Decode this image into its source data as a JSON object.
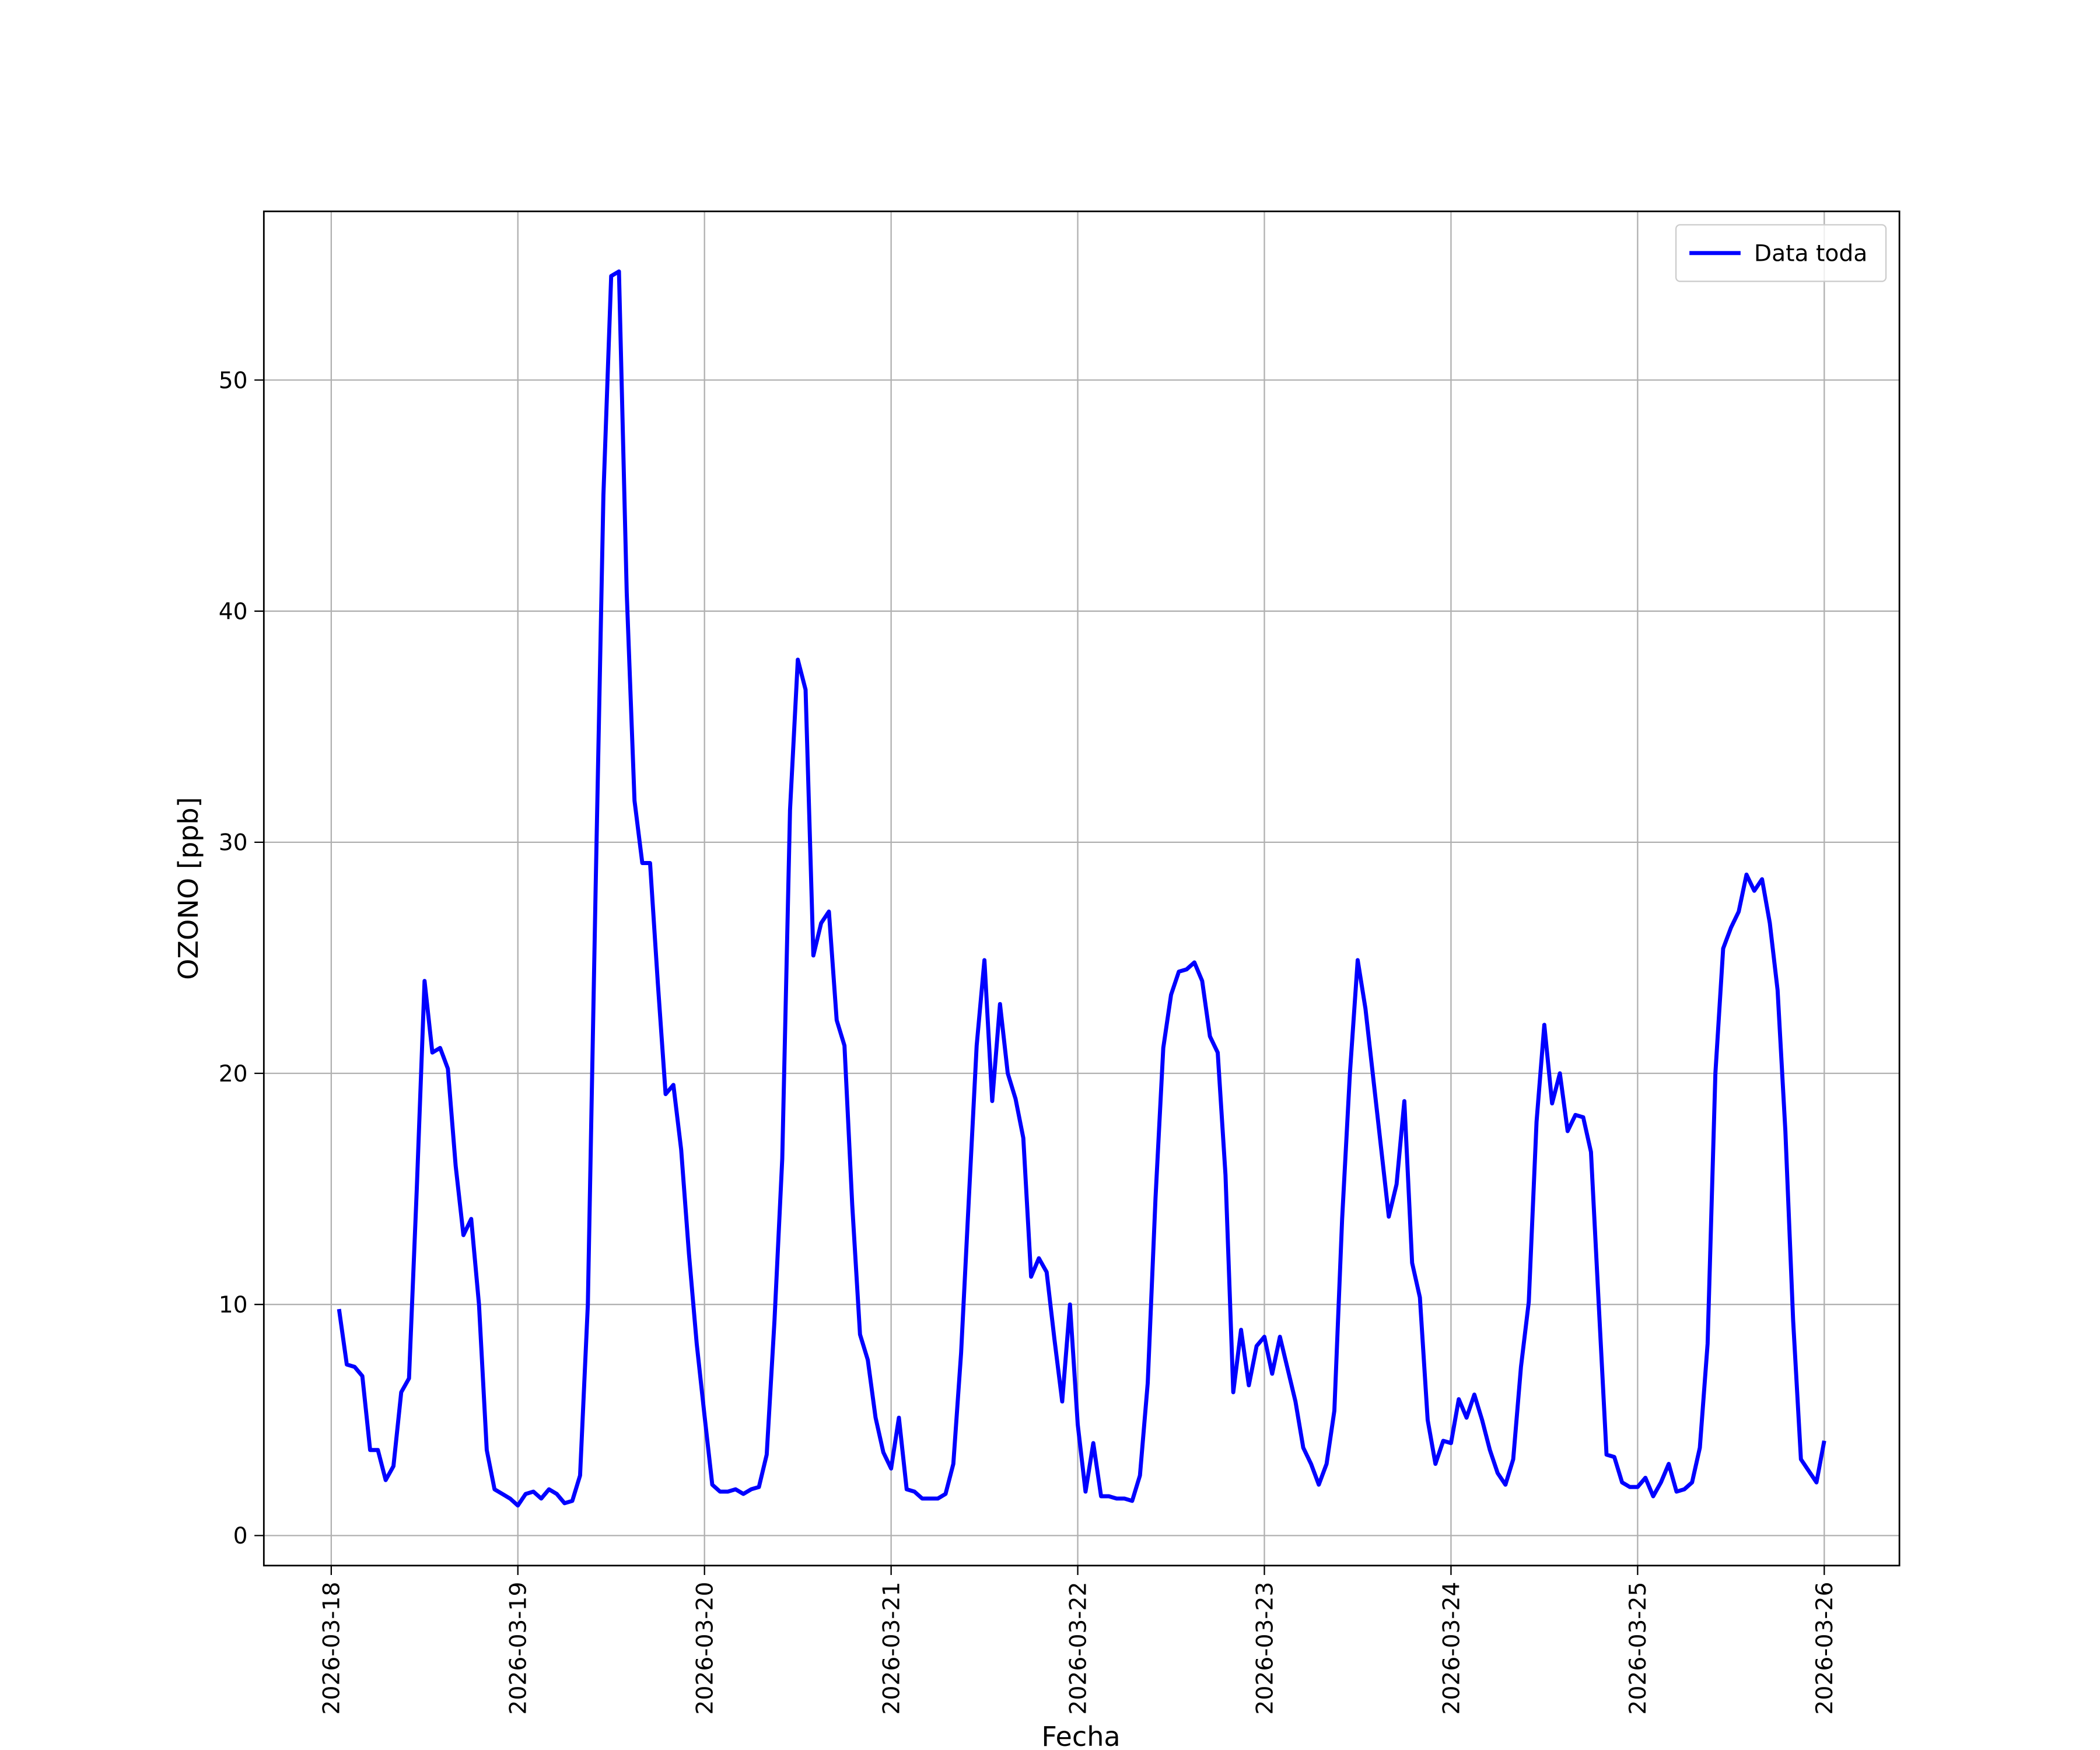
{
  "chart_data": {
    "type": "line",
    "xlabel": "Fecha",
    "ylabel": "OZONO [ppb]",
    "x": [
      "2026-03-18T01:00",
      "2026-03-18T02:00",
      "2026-03-18T03:00",
      "2026-03-18T04:00",
      "2026-03-18T05:00",
      "2026-03-18T06:00",
      "2026-03-18T07:00",
      "2026-03-18T08:00",
      "2026-03-18T09:00",
      "2026-03-18T10:00",
      "2026-03-18T11:00",
      "2026-03-18T12:00",
      "2026-03-18T13:00",
      "2026-03-18T14:00",
      "2026-03-18T15:00",
      "2026-03-18T16:00",
      "2026-03-18T17:00",
      "2026-03-18T18:00",
      "2026-03-18T19:00",
      "2026-03-18T20:00",
      "2026-03-18T21:00",
      "2026-03-18T22:00",
      "2026-03-18T23:00",
      "2026-03-19T00:00",
      "2026-03-19T01:00",
      "2026-03-19T02:00",
      "2026-03-19T03:00",
      "2026-03-19T04:00",
      "2026-03-19T05:00",
      "2026-03-19T06:00",
      "2026-03-19T07:00",
      "2026-03-19T08:00",
      "2026-03-19T09:00",
      "2026-03-19T10:00",
      "2026-03-19T11:00",
      "2026-03-19T12:00",
      "2026-03-19T13:00",
      "2026-03-19T14:00",
      "2026-03-19T15:00",
      "2026-03-19T16:00",
      "2026-03-19T17:00",
      "2026-03-19T18:00",
      "2026-03-19T19:00",
      "2026-03-19T20:00",
      "2026-03-19T21:00",
      "2026-03-19T22:00",
      "2026-03-19T23:00",
      "2026-03-20T00:00",
      "2026-03-20T01:00",
      "2026-03-20T02:00",
      "2026-03-20T03:00",
      "2026-03-20T04:00",
      "2026-03-20T05:00",
      "2026-03-20T06:00",
      "2026-03-20T07:00",
      "2026-03-20T08:00",
      "2026-03-20T09:00",
      "2026-03-20T10:00",
      "2026-03-20T11:00",
      "2026-03-20T12:00",
      "2026-03-20T13:00",
      "2026-03-20T14:00",
      "2026-03-20T15:00",
      "2026-03-20T16:00",
      "2026-03-20T17:00",
      "2026-03-20T18:00",
      "2026-03-20T19:00",
      "2026-03-20T20:00",
      "2026-03-20T21:00",
      "2026-03-20T22:00",
      "2026-03-20T23:00",
      "2026-03-21T00:00",
      "2026-03-21T01:00",
      "2026-03-21T02:00",
      "2026-03-21T03:00",
      "2026-03-21T04:00",
      "2026-03-21T05:00",
      "2026-03-21T06:00",
      "2026-03-21T07:00",
      "2026-03-21T08:00",
      "2026-03-21T09:00",
      "2026-03-21T10:00",
      "2026-03-21T11:00",
      "2026-03-21T12:00",
      "2026-03-21T13:00",
      "2026-03-21T14:00",
      "2026-03-21T15:00",
      "2026-03-21T16:00",
      "2026-03-21T17:00",
      "2026-03-21T18:00",
      "2026-03-21T19:00",
      "2026-03-21T20:00",
      "2026-03-21T21:00",
      "2026-03-21T22:00",
      "2026-03-21T23:00",
      "2026-03-22T00:00",
      "2026-03-22T01:00",
      "2026-03-22T02:00",
      "2026-03-22T03:00",
      "2026-03-22T04:00",
      "2026-03-22T05:00",
      "2026-03-22T06:00",
      "2026-03-22T07:00",
      "2026-03-22T08:00",
      "2026-03-22T09:00",
      "2026-03-22T10:00",
      "2026-03-22T11:00",
      "2026-03-22T12:00",
      "2026-03-22T13:00",
      "2026-03-22T14:00",
      "2026-03-22T15:00",
      "2026-03-22T16:00",
      "2026-03-22T17:00",
      "2026-03-22T18:00",
      "2026-03-22T19:00",
      "2026-03-22T20:00",
      "2026-03-22T21:00",
      "2026-03-22T22:00",
      "2026-03-22T23:00",
      "2026-03-23T00:00",
      "2026-03-23T01:00",
      "2026-03-23T02:00",
      "2026-03-23T03:00",
      "2026-03-23T04:00",
      "2026-03-23T05:00",
      "2026-03-23T06:00",
      "2026-03-23T07:00",
      "2026-03-23T08:00",
      "2026-03-23T09:00",
      "2026-03-23T10:00",
      "2026-03-23T11:00",
      "2026-03-23T12:00",
      "2026-03-23T13:00",
      "2026-03-23T14:00",
      "2026-03-23T15:00",
      "2026-03-23T16:00",
      "2026-03-23T17:00",
      "2026-03-23T18:00",
      "2026-03-23T19:00",
      "2026-03-23T20:00",
      "2026-03-23T21:00",
      "2026-03-23T22:00",
      "2026-03-23T23:00",
      "2026-03-24T00:00",
      "2026-03-24T01:00",
      "2026-03-24T02:00",
      "2026-03-24T03:00",
      "2026-03-24T04:00",
      "2026-03-24T05:00",
      "2026-03-24T06:00",
      "2026-03-24T07:00",
      "2026-03-24T08:00",
      "2026-03-24T09:00",
      "2026-03-24T10:00",
      "2026-03-24T11:00",
      "2026-03-24T12:00",
      "2026-03-24T13:00",
      "2026-03-24T14:00",
      "2026-03-24T15:00",
      "2026-03-24T16:00",
      "2026-03-24T17:00",
      "2026-03-24T18:00",
      "2026-03-24T19:00",
      "2026-03-24T20:00",
      "2026-03-24T21:00",
      "2026-03-24T22:00",
      "2026-03-24T23:00",
      "2026-03-25T00:00",
      "2026-03-25T01:00",
      "2026-03-25T02:00",
      "2026-03-25T03:00",
      "2026-03-25T04:00",
      "2026-03-25T05:00",
      "2026-03-25T06:00",
      "2026-03-25T07:00",
      "2026-03-25T08:00",
      "2026-03-25T09:00",
      "2026-03-25T10:00",
      "2026-03-25T11:00",
      "2026-03-25T12:00",
      "2026-03-25T13:00",
      "2026-03-25T14:00",
      "2026-03-25T15:00",
      "2026-03-25T16:00",
      "2026-03-25T17:00",
      "2026-03-25T18:00",
      "2026-03-25T19:00",
      "2026-03-25T20:00",
      "2026-03-25T21:00",
      "2026-03-25T22:00",
      "2026-03-25T23:00",
      "2026-03-26T00:00"
    ],
    "series": [
      {
        "name": "Data toda",
        "color": "#0000ff",
        "values": [
          9.8,
          7.4,
          7.3,
          6.9,
          3.7,
          3.7,
          2.4,
          3.0,
          6.2,
          6.8,
          15,
          24.0,
          20.9,
          21.1,
          20.2,
          16.0,
          13.0,
          13.7,
          10.0,
          3.7,
          2.0,
          1.8,
          1.6,
          1.3,
          1.8,
          1.9,
          1.6,
          2.0,
          1.8,
          1.4,
          1.5,
          2.6,
          10.0,
          28,
          45,
          54.5,
          54.7,
          40.8,
          31.8,
          29.1,
          29.1,
          23.9,
          19.1,
          19.5,
          16.7,
          12.2,
          8.3,
          5.2,
          2.2,
          1.9,
          1.9,
          2.0,
          1.8,
          2.0,
          2.1,
          3.5,
          9.3,
          16.3,
          31.4,
          37.9,
          36.6,
          25.1,
          26.5,
          27.0,
          22.3,
          21.2,
          14.3,
          8.7,
          7.6,
          5.1,
          3.6,
          2.9,
          5.1,
          2.0,
          1.9,
          1.6,
          1.6,
          1.6,
          1.8,
          3.1,
          7.9,
          14.6,
          21.2,
          24.9,
          18.8,
          23.0,
          20.0,
          18.9,
          17.2,
          11.2,
          12.0,
          11.4,
          8.5,
          5.8,
          10.0,
          4.8,
          1.9,
          4.0,
          1.7,
          1.7,
          1.6,
          1.6,
          1.5,
          2.6,
          6.6,
          14.6,
          21.1,
          23.4,
          24.4,
          24.5,
          24.8,
          24.0,
          21.6,
          20.9,
          15.6,
          6.2,
          8.9,
          6.5,
          8.2,
          8.6,
          7.0,
          8.6,
          7.2,
          5.8,
          3.8,
          3.1,
          2.2,
          3.1,
          5.4,
          13.7,
          20.0,
          24.9,
          22.8,
          19.8,
          16.8,
          13.8,
          15.2,
          18.8,
          11.8,
          10.3,
          5.0,
          3.1,
          4.1,
          4.0,
          5.9,
          5.1,
          6.1,
          5.0,
          3.7,
          2.7,
          2.2,
          3.3,
          7.3,
          10.1,
          17.9,
          22.1,
          18.7,
          20.0,
          17.5,
          18.2,
          18.1,
          16.6,
          10.0,
          3.5,
          3.4,
          2.3,
          2.1,
          2.1,
          2.5,
          1.7,
          2.3,
          3.1,
          1.9,
          2.0,
          2.3,
          3.8,
          8.3,
          20.0,
          25.4,
          26.3,
          27.0,
          28.6,
          27.9,
          28.4,
          26.5,
          23.6,
          17.5,
          9.3,
          3.3,
          2.8,
          2.3,
          4.1
        ]
      }
    ],
    "xlim": [
      "2026-03-17T15:20",
      "2026-03-26T09:40"
    ],
    "xticks": [
      "2026-03-18",
      "2026-03-19",
      "2026-03-20",
      "2026-03-21",
      "2026-03-22",
      "2026-03-23",
      "2026-03-24",
      "2026-03-25",
      "2026-03-26"
    ],
    "ylim": [
      -1.3,
      57.3
    ],
    "yticks": [
      0,
      10,
      20,
      30,
      40,
      50
    ],
    "grid": true,
    "legend": "upper right"
  }
}
